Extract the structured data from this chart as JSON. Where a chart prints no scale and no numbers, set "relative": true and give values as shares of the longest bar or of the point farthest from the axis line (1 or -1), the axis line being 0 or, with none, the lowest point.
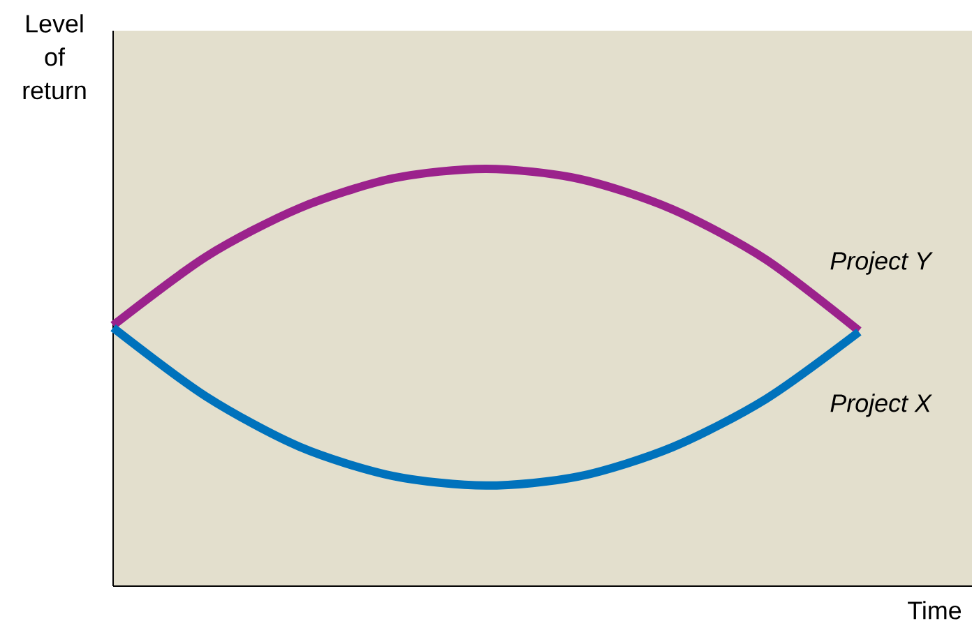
{
  "chart_data": {
    "type": "line",
    "relative": true,
    "xlabel": "Time",
    "ylabel": "Level of return",
    "categories": [
      null,
      null,
      null,
      null,
      null,
      null,
      null,
      null,
      null
    ],
    "marker": "none",
    "series": [
      {
        "name": "Project Y",
        "color": "#9b228c",
        "values": [
          0.625,
          0.79,
          0.906,
          0.977,
          1,
          0.976,
          0.903,
          0.783,
          0.612
        ]
      },
      {
        "name": "Project X",
        "color": "#0072bc",
        "values": [
          0.619,
          0.454,
          0.334,
          0.264,
          0.241,
          0.263,
          0.333,
          0.448,
          0.609
        ]
      }
    ]
  }
}
